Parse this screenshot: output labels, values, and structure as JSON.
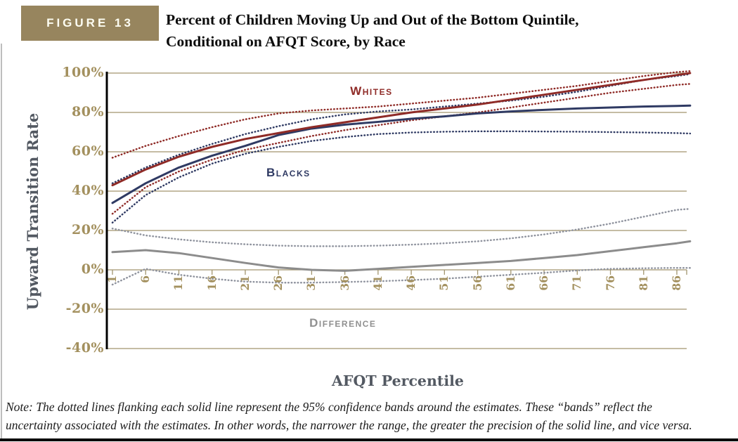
{
  "figure_label": "FIGURE 13",
  "title_line1": "Percent of Children Moving Up and Out of the Bottom Quintile,",
  "title_line2": "Conditional on AFQT Score, by Race",
  "note_line1": "Note: The dotted lines flanking each solid line represent the 95% confidence bands around the estimates. These “bands” reflect the",
  "note_line2": "uncertainty associated with the estimates. In other words, the narrower the range, the greater the precision of the solid line, and vice versa.",
  "colors": {
    "figure_box": "#97855e",
    "gridline": "#a2956e",
    "tick_label": "#a3905e",
    "axis_title": "#535962",
    "whites": "#8f2b27",
    "blacks": "#2f3a63",
    "difference_solid": "#8c8c8c",
    "difference_dotted": "#8f939e",
    "axis_line": "#000000"
  },
  "chart_data": {
    "type": "line",
    "title": "Percent of Children Moving Up and Out of the Bottom Quintile, Conditional on AFQT Score, by Race",
    "xlabel": "AFQT Percentile",
    "ylabel": "Upward Transition Rate",
    "ylim": [
      -40,
      100
    ],
    "grid": "horizontal",
    "legend_position": "inline-annotations",
    "x": [
      1,
      6,
      11,
      16,
      21,
      26,
      31,
      36,
      41,
      46,
      51,
      56,
      61,
      66,
      71,
      76,
      81,
      86,
      88
    ],
    "x_tick_labels": [
      "1",
      "6",
      "11",
      "16",
      "21",
      "26",
      "31",
      "36",
      "41",
      "46",
      "51",
      "56",
      "61",
      "66",
      "71",
      "76",
      "81",
      "86"
    ],
    "y_ticks": [
      {
        "label": "100%",
        "value": 100
      },
      {
        "label": "80%",
        "value": 80
      },
      {
        "label": "60%",
        "value": 60
      },
      {
        "label": "40%",
        "value": 40
      },
      {
        "label": "20%",
        "value": 20
      },
      {
        "label": "0%",
        "value": 0
      },
      {
        "label": "-20%",
        "value": -20
      },
      {
        "label": "-40%",
        "value": -40
      }
    ],
    "series": [
      {
        "name": "whites-upper-band",
        "legend": "Whites 95% upper band",
        "style": "dotted",
        "color": "#8f2b27",
        "values": [
          57,
          63,
          68,
          72.5,
          76.5,
          79.5,
          81,
          82,
          83,
          84.5,
          86,
          87.5,
          89.5,
          91.5,
          93.5,
          96,
          98.5,
          100.5,
          101
        ]
      },
      {
        "name": "whites-lower-band",
        "legend": "Whites 95% lower band",
        "style": "dotted",
        "color": "#8f2b27",
        "values": [
          28.5,
          42,
          50,
          56,
          61,
          64.5,
          68,
          71,
          73.5,
          76,
          78,
          80,
          82.5,
          85,
          87.5,
          90,
          92,
          94,
          94.5
        ]
      },
      {
        "name": "blacks-upper-band",
        "legend": "Blacks 95% upper band",
        "style": "dotted",
        "color": "#2f3a63",
        "values": [
          44,
          52,
          58.5,
          64,
          69,
          73,
          76.5,
          79,
          80.5,
          81.5,
          83,
          84.5,
          86,
          88,
          90.5,
          93.5,
          96.5,
          98.5,
          99.5
        ]
      },
      {
        "name": "blacks-lower-band",
        "legend": "Blacks 95% lower band",
        "style": "dotted",
        "color": "#2f3a63",
        "values": [
          24,
          38,
          47,
          54,
          59,
          62.5,
          65.5,
          67.5,
          69,
          69.8,
          70.2,
          70.4,
          70.4,
          70.3,
          70.2,
          70,
          69.8,
          69.5,
          69.3
        ]
      },
      {
        "name": "difference-upper-band",
        "legend": "Difference 95% upper band",
        "style": "dotted",
        "color": "#8f939e",
        "values": [
          21,
          17.5,
          15.5,
          14,
          13,
          12.3,
          12,
          12,
          12.3,
          12.8,
          13.5,
          14.5,
          16,
          18,
          20.5,
          23.5,
          27,
          30.5,
          31
        ]
      },
      {
        "name": "difference-lower-band",
        "legend": "Difference 95% lower band",
        "style": "dotted",
        "color": "#8f939e",
        "values": [
          -7.5,
          0.5,
          -2.5,
          -4.5,
          -6,
          -6.5,
          -6.5,
          -6.2,
          -5.8,
          -5.2,
          -4.5,
          -3.5,
          -2.5,
          -1.5,
          -0.3,
          0.5,
          0.8,
          1,
          1
        ]
      },
      {
        "name": "difference",
        "legend": "Difference",
        "style": "solid",
        "color": "#8c8c8c",
        "values": [
          9,
          10,
          8.5,
          6,
          3.5,
          1.2,
          0,
          -0.5,
          0.5,
          1.5,
          2.5,
          3.5,
          4.5,
          6,
          7.5,
          9.5,
          11.5,
          13.5,
          14.5
        ]
      },
      {
        "name": "blacks",
        "legend": "Blacks",
        "style": "solid",
        "color": "#2f3a63",
        "values": [
          34,
          44,
          52,
          58,
          63,
          68.5,
          71.8,
          73.8,
          75.2,
          76.8,
          78,
          79.5,
          80.5,
          81.3,
          82,
          82.5,
          83,
          83.3,
          83.5
        ]
      },
      {
        "name": "whites",
        "legend": "Whites",
        "style": "solid",
        "color": "#8f2b27",
        "values": [
          43,
          51,
          57.5,
          62.5,
          66.5,
          69.5,
          72.5,
          75,
          77.5,
          80,
          82,
          84,
          86.5,
          89,
          91.5,
          94,
          96.5,
          99,
          100
        ]
      }
    ],
    "annotations": [
      {
        "text": "Whites",
        "x": 40,
        "y": 90.5,
        "color": "#8f2b27"
      },
      {
        "text": "Blacks",
        "x": 27.5,
        "y": 49,
        "color": "#2f3a63"
      },
      {
        "text": "Difference",
        "x": 35.7,
        "y": -27.5,
        "color": "#909090"
      }
    ]
  }
}
